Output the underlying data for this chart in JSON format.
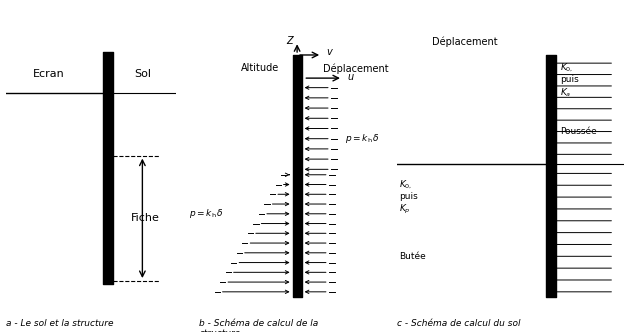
{
  "bg_color": "#ffffff",
  "panel_a_label": "a - Le sol et la structure",
  "panel_b_label": "b - Schéma de calcul de la\nstructure",
  "panel_c_label": "c - Schéma de calcul du sol",
  "ecran_label": "Ecran",
  "sol_label": "Sol",
  "fiche_label": "Fiche",
  "altitude_label": "Altitude",
  "deplacement_label_b": "Déplacement",
  "deplacement_label_c": "Déplacement",
  "u_label": "u",
  "z_label": "Z",
  "v_label": "v"
}
